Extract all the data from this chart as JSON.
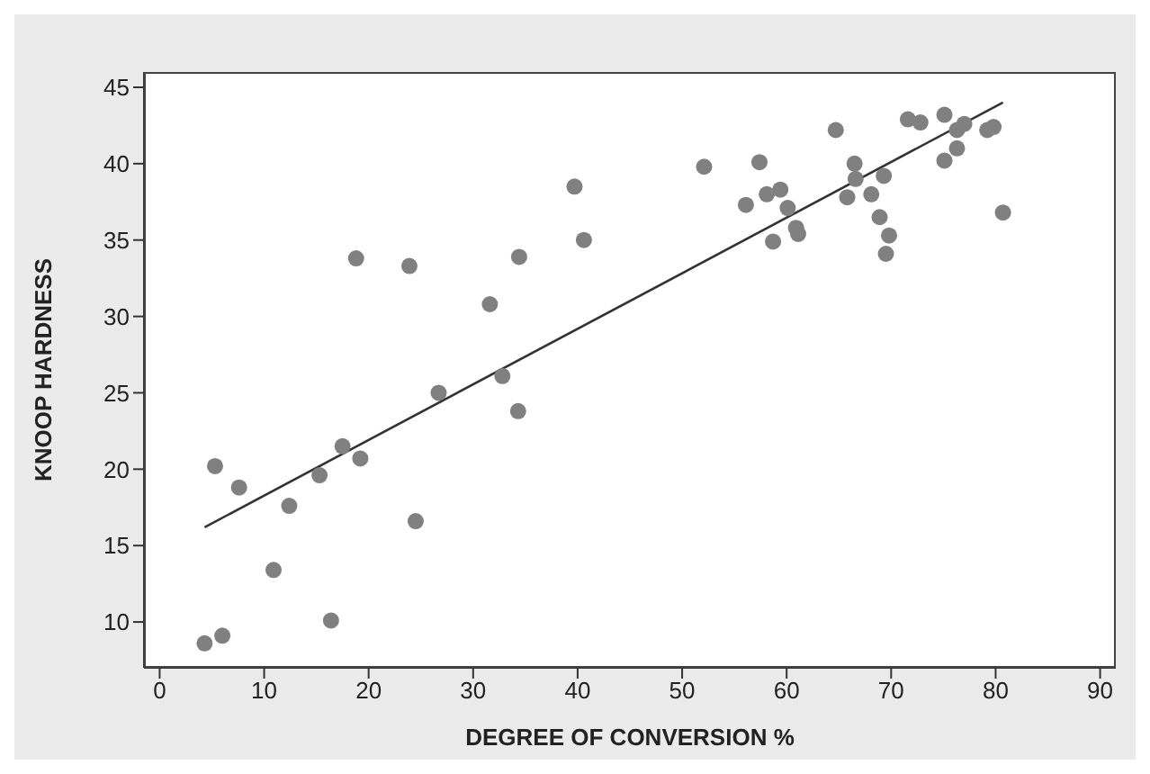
{
  "chart_data": {
    "type": "scatter",
    "xlabel": "DEGREE OF CONVERSION %",
    "ylabel": "KNOOP HARDNESS",
    "xlim": [
      -1.5,
      91.5
    ],
    "ylim": [
      7,
      46
    ],
    "xticks": [
      0,
      10,
      20,
      30,
      40,
      50,
      60,
      70,
      80,
      90
    ],
    "yticks": [
      10,
      15,
      20,
      25,
      30,
      35,
      40,
      45
    ],
    "grid": false,
    "marker": "circle",
    "series": [
      {
        "color": "#808080",
        "x": [
          4.3,
          6,
          5.3,
          7.6,
          10.9,
          12.4,
          15.3,
          17.5,
          19.2,
          16.4,
          18.8,
          23.9,
          24.5,
          26.7,
          31.6,
          32.8,
          34.3,
          34.4,
          39.7,
          40.6,
          52.1,
          57.4,
          56.1,
          58.1,
          59.4,
          60.1,
          60.9,
          61.1,
          58.7,
          64.7,
          66.5,
          66.6,
          65.8,
          68.1,
          69.3,
          68.9,
          69.8,
          69.5,
          71.6,
          72.8,
          75.1,
          75.1,
          76.3,
          76.3,
          77.0,
          79.2,
          79.8,
          80.7
        ],
        "values": [
          8.6,
          9.1,
          20.2,
          18.8,
          13.4,
          17.6,
          19.6,
          21.5,
          20.7,
          10.1,
          33.8,
          33.3,
          16.6,
          25,
          30.8,
          26.1,
          23.8,
          33.9,
          38.5,
          35,
          39.8,
          40.1,
          37.3,
          38,
          38.3,
          37.1,
          35.8,
          35.4,
          34.9,
          42.2,
          40,
          39,
          37.8,
          38,
          39.2,
          36.5,
          35.3,
          34.1,
          42.9,
          42.7,
          43.2,
          40.2,
          42.2,
          41,
          42.6,
          42.2,
          42.4,
          36.8
        ]
      },
      {
        "type": "line",
        "color": "#333333",
        "marker": "none",
        "x": [
          4.3,
          80.7
        ],
        "values": [
          16.2,
          44.0
        ]
      }
    ]
  }
}
